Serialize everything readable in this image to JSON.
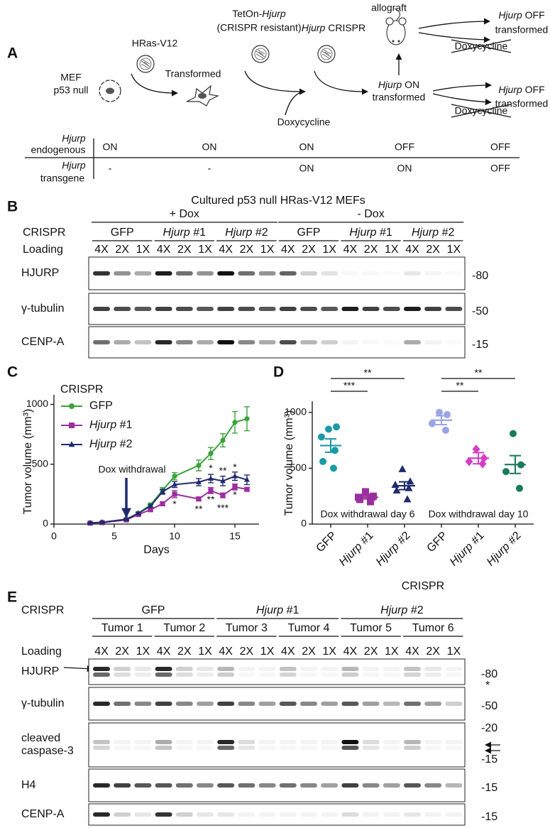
{
  "panel_labels": [
    "A",
    "B",
    "C",
    "D",
    "E"
  ],
  "panel_a": {
    "mef": [
      "MEF",
      "p53 null"
    ],
    "hras": "HRas-V12",
    "transformed": "Transformed",
    "teton": {
      "prefix": "TetOn-",
      "gene": "Hjurp",
      "note": "(CRISPR resistant)"
    },
    "crispr": {
      "gene": "Hjurp",
      "suffix": " CRISPR"
    },
    "doxycycline": "Doxycycline",
    "allograft": "allograft",
    "on": {
      "gene": "Hjurp",
      "state": " ON",
      "line2": "transformed"
    },
    "off_top": {
      "gene": "Hjurp",
      "state": " OFF",
      "line2": "transformed",
      "crossed": "Doxycycline"
    },
    "off_bottom": {
      "gene": "Hjurp",
      "state": " OFF",
      "line2": "transformed",
      "crossed": "Doxycycline"
    },
    "table": {
      "rows": [
        {
          "gene": "Hjurp",
          "label": "endogenous",
          "cells": [
            "ON",
            "ON",
            "ON",
            "OFF",
            "OFF"
          ]
        },
        {
          "gene": "Hjurp",
          "label": "transgene",
          "cells": [
            "-",
            "-",
            "ON",
            "ON",
            "OFF"
          ]
        }
      ]
    }
  },
  "panel_b": {
    "title": "Cultured p53 null HRas-V12 MEFs",
    "conditions": [
      "+ Dox",
      "- Dox"
    ],
    "crispr_label": "CRISPR",
    "loading_label": "Loading",
    "groups": [
      "GFP",
      "Hjurp #1",
      "Hjurp #2",
      "GFP",
      "Hjurp #1",
      "Hjurp #2"
    ],
    "loadings": [
      "4X",
      "2X",
      "1X"
    ],
    "blots": [
      {
        "label": [
          "HJURP"
        ],
        "markers": [
          "-80"
        ]
      },
      {
        "label": [
          "γ-tubulin"
        ],
        "markers": [
          "-50"
        ]
      },
      {
        "label": [
          "CENP-A"
        ],
        "markers": [
          "-15"
        ]
      }
    ]
  },
  "chart_data": [
    {
      "type": "line",
      "ylabel": "Tumor volume (mm³)",
      "xlabel": "Days",
      "legend_title": "CRISPR",
      "x": [
        3,
        4,
        6,
        7,
        8,
        9,
        10,
        12,
        13,
        14,
        15,
        16
      ],
      "series": [
        {
          "name": "GFP",
          "color": "#3aa33a",
          "marker": "circle",
          "values": [
            10,
            15,
            40,
            90,
            160,
            280,
            400,
            490,
            590,
            700,
            850,
            880
          ],
          "errors": [
            3,
            4,
            8,
            12,
            15,
            25,
            30,
            45,
            50,
            55,
            90,
            100
          ]
        },
        {
          "name": "Hjurp #1",
          "color": "#9b2f9e",
          "marker": "square",
          "values": [
            8,
            12,
            35,
            80,
            120,
            170,
            250,
            210,
            280,
            240,
            310,
            290
          ],
          "errors": [
            3,
            4,
            6,
            10,
            12,
            15,
            30,
            15,
            25,
            20,
            25,
            15
          ]
        },
        {
          "name": "Hjurp #2",
          "color": "#1f2a6e",
          "marker": "triangle",
          "values": [
            10,
            15,
            40,
            90,
            150,
            270,
            330,
            350,
            380,
            360,
            400,
            370
          ],
          "errors": [
            3,
            4,
            6,
            10,
            12,
            20,
            25,
            30,
            35,
            40,
            35,
            40
          ]
        }
      ],
      "xlim": [
        0,
        17
      ],
      "xticks": [
        0,
        5,
        10,
        15
      ],
      "ylim": [
        0,
        1080
      ],
      "yticks": [
        0,
        500,
        1000
      ],
      "arrow_annotation": {
        "text": "Dox withdrawal",
        "x": 6
      },
      "annotations": [
        {
          "text": "*",
          "x": 10,
          "y": 160
        },
        {
          "text": "**",
          "x": 12,
          "y": 120
        },
        {
          "text": "*",
          "x": 13,
          "y": 460
        },
        {
          "text": "**",
          "x": 13,
          "y": 200
        },
        {
          "text": "**",
          "x": 14,
          "y": 440
        },
        {
          "text": "***",
          "x": 14,
          "y": 130
        },
        {
          "text": "*",
          "x": 15,
          "y": 470
        },
        {
          "text": "*",
          "x": 15,
          "y": 240
        }
      ]
    },
    {
      "type": "dot",
      "ylabel": "Tumor volume (mm³)",
      "xlabel": "CRISPR",
      "categories": [
        "GFP",
        "Hjurp #1",
        "Hjurp #2",
        "GFP",
        "Hjurp #1",
        "Hjurp #2"
      ],
      "colors": [
        "#1a9aa6",
        "#9b2f9e",
        "#1f2a6e",
        "#9da3e6",
        "#d33fc7",
        "#1a7a5c"
      ],
      "markers": [
        "circle",
        "square",
        "triangle",
        "circle",
        "diamond",
        "circle"
      ],
      "values": [
        [
          850,
          870,
          780,
          660,
          560,
          500
        ],
        [
          290,
          250,
          240,
          240,
          220,
          200
        ],
        [
          490,
          380,
          350,
          320,
          300,
          220
        ],
        [
          1000,
          980,
          900,
          840
        ],
        [
          670,
          590,
          560,
          540
        ],
        [
          810,
          530,
          470,
          320
        ]
      ],
      "means": [
        703,
        240,
        343,
        930,
        590,
        533
      ],
      "sems": [
        60,
        15,
        35,
        40,
        50,
        80
      ],
      "ylim": [
        0,
        1100
      ],
      "yticks": [
        0,
        500,
        1000
      ],
      "group_labels": [
        "Dox withdrawal day 6",
        "Dox withdrawal day 10"
      ],
      "brackets": [
        {
          "from": 0,
          "to": 2,
          "label": "**"
        },
        {
          "from": 0,
          "to": 1,
          "label": "***"
        },
        {
          "from": 3,
          "to": 5,
          "label": "**"
        },
        {
          "from": 3,
          "to": 4,
          "label": "**"
        }
      ]
    }
  ],
  "panel_e": {
    "crispr_label": "CRISPR",
    "groups": [
      "GFP",
      "Hjurp #1",
      "Hjurp #2"
    ],
    "tumors": [
      "Tumor 1",
      "Tumor 2",
      "Tumor 3",
      "Tumor 4",
      "Tumor 5",
      "Tumor 6"
    ],
    "loading_label": "Loading",
    "loadings": [
      "4X",
      "2X",
      "1X"
    ],
    "blots": [
      {
        "label": [
          "HJURP"
        ],
        "markers": [
          "-80"
        ],
        "note": "*"
      },
      {
        "label": [
          "γ-tubulin"
        ],
        "markers": [
          "-50"
        ]
      },
      {
        "label": [
          "cleaved",
          "caspase-3"
        ],
        "markers": [
          "-20",
          "-15"
        ]
      },
      {
        "label": [
          "H4"
        ],
        "markers": [
          "-15"
        ]
      },
      {
        "label": [
          "CENP-A"
        ],
        "markers": [
          "-15"
        ]
      }
    ]
  }
}
